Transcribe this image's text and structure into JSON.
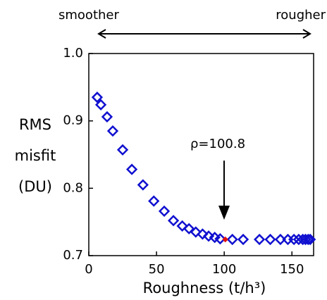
{
  "chart_data": {
    "type": "scatter",
    "top_left_label": "smoother",
    "top_right_label": "rougher",
    "xlabel": "Roughness (t/h³)",
    "ylabel": [
      "RMS",
      "misfit",
      "(DU)"
    ],
    "annotation": "ρ=100.8",
    "x": [
      6.2,
      8.9,
      13.5,
      17.7,
      25,
      31.8,
      40,
      48,
      55.7,
      62.5,
      69,
      74,
      79,
      84,
      88.5,
      93,
      97,
      106,
      114,
      126,
      134,
      141.5,
      147,
      151.5,
      155,
      158,
      160,
      162,
      163.5
    ],
    "values": [
      0.935,
      0.924,
      0.906,
      0.885,
      0.857,
      0.828,
      0.805,
      0.781,
      0.766,
      0.752,
      0.744,
      0.74,
      0.735,
      0.732,
      0.729,
      0.727,
      0.725,
      0.724,
      0.724,
      0.724,
      0.724,
      0.724,
      0.724,
      0.724,
      0.724,
      0.724,
      0.724,
      0.724,
      0.724
    ],
    "color": "#1010d0",
    "highlight": {
      "x": 100.8,
      "y": 0.724,
      "color": "#e01010"
    },
    "xlim": [
      0,
      166
    ],
    "xticks": [
      0,
      50,
      100,
      150
    ],
    "ylim": [
      0.7,
      1.0
    ],
    "yticks": [
      0.7,
      0.8,
      0.9,
      {
        "value": 1,
        "label": "1.0"
      }
    ]
  }
}
